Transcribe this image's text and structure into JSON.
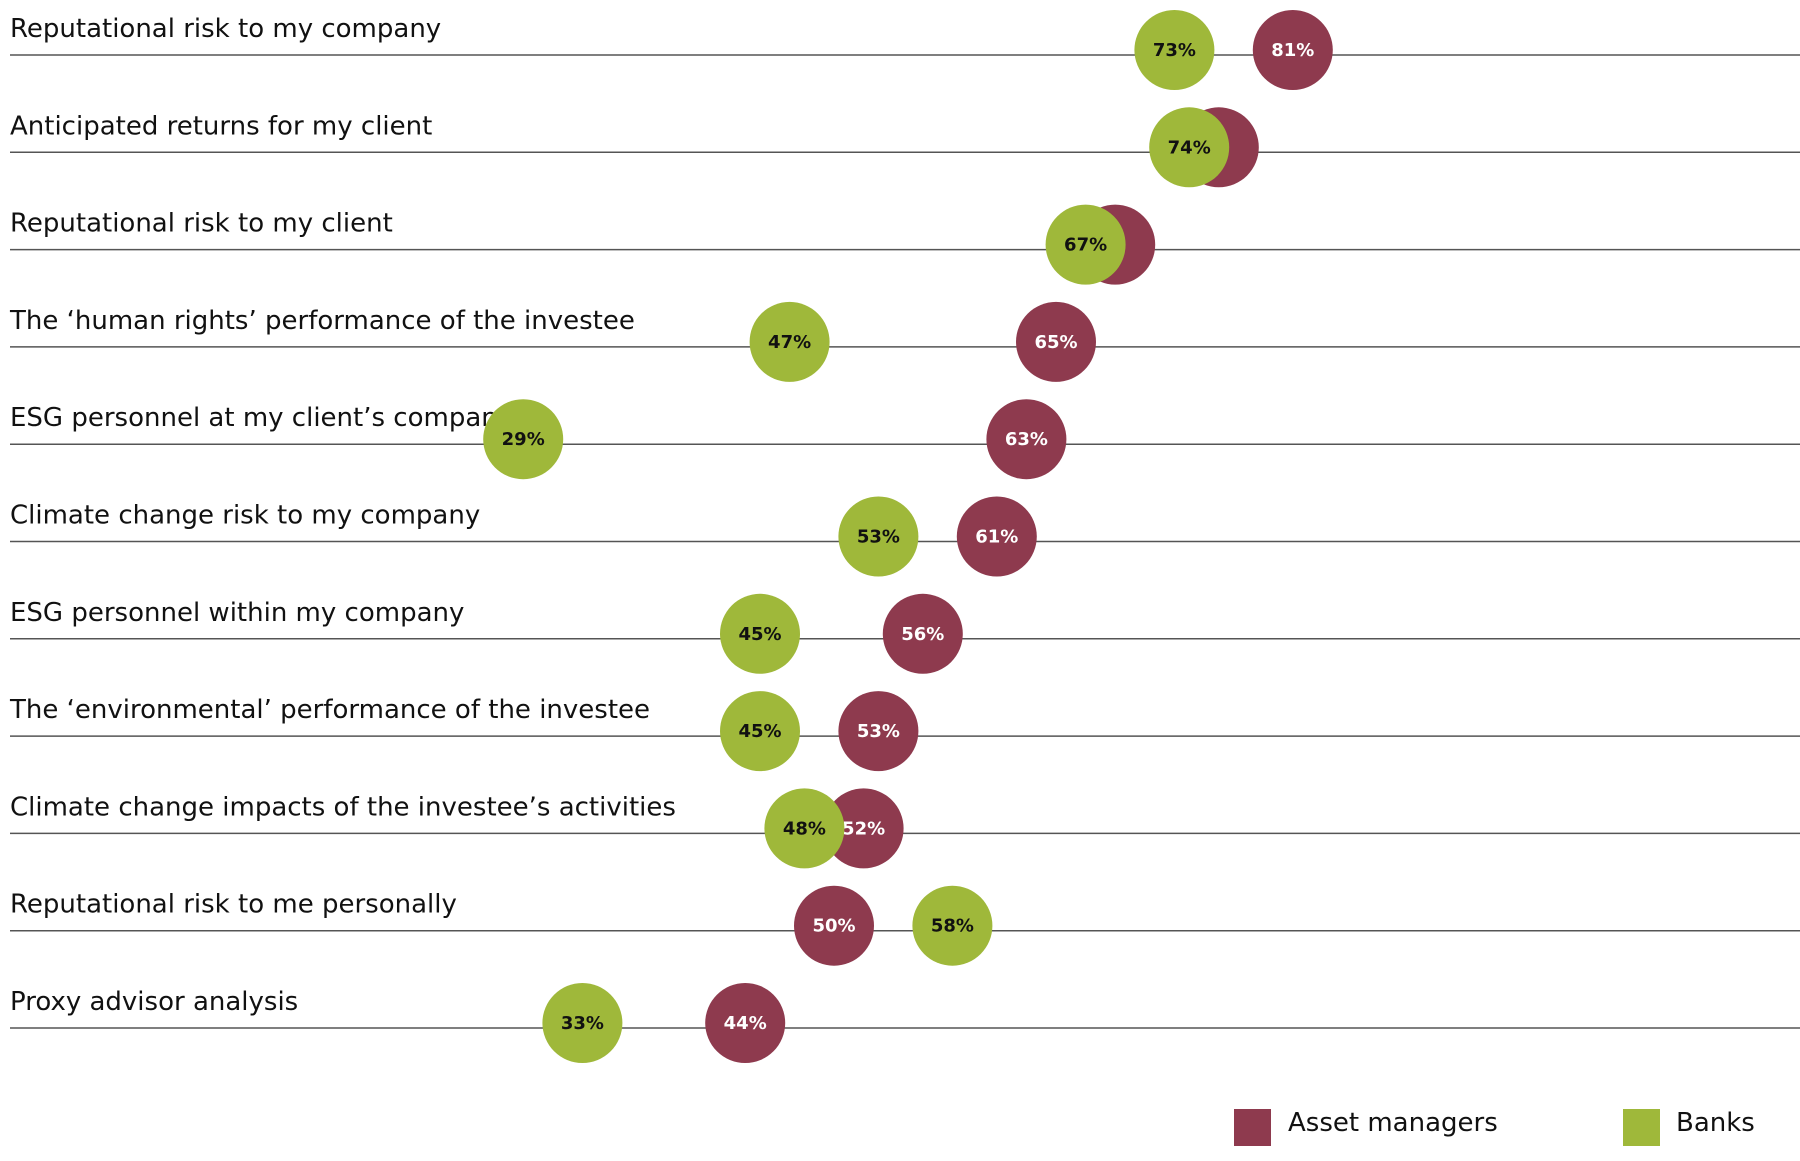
{
  "chart_data": {
    "type": "scatter",
    "subtype": "dot-plot",
    "title": "",
    "xlabel": "",
    "ylabel": "",
    "xlim": [
      0,
      100
    ],
    "grid": false,
    "legend_position": "bottom-right",
    "categories": [
      "Reputational risk to my company",
      "Anticipated returns for my client",
      "Reputational risk to my client",
      "The ‘human rights’ performance of the investee",
      "ESG personnel at my client’s company",
      "Climate change risk to my company",
      "ESG personnel within my company",
      "The ‘environmental’ performance of the investee",
      "Climate change impacts of the investee’s activities",
      "Reputational risk to me personally",
      "Proxy advisor analysis"
    ],
    "series": [
      {
        "name": "Asset managers",
        "color": "#8e3a4e",
        "label_color": "#ffffff",
        "values": [
          81,
          76,
          69,
          65,
          63,
          61,
          56,
          53,
          52,
          50,
          44
        ],
        "labels": [
          "81%",
          "",
          "",
          "65%",
          "63%",
          "61%",
          "56%",
          "53%",
          "52%",
          "50%",
          "44%"
        ]
      },
      {
        "name": "Banks",
        "color": "#9fb83a",
        "label_color": "#111111",
        "values": [
          73,
          74,
          67,
          47,
          29,
          53,
          45,
          45,
          48,
          58,
          33
        ],
        "labels": [
          "73%",
          "74%",
          "67%",
          "47%",
          "29%",
          "53%",
          "45%",
          "45%",
          "48%",
          "58%",
          "33%"
        ]
      }
    ]
  }
}
